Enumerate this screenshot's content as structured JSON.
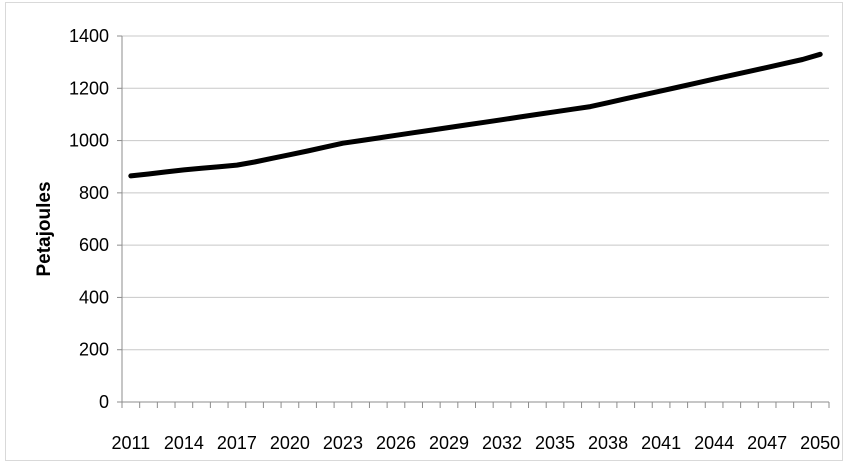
{
  "chart_data": {
    "type": "line",
    "title": "",
    "xlabel": "",
    "ylabel": "Petajoules",
    "x": [
      2011,
      2012,
      2013,
      2014,
      2015,
      2016,
      2017,
      2018,
      2019,
      2020,
      2021,
      2022,
      2023,
      2024,
      2025,
      2026,
      2027,
      2028,
      2029,
      2030,
      2031,
      2032,
      2033,
      2034,
      2035,
      2036,
      2037,
      2038,
      2039,
      2040,
      2041,
      2042,
      2043,
      2044,
      2045,
      2046,
      2047,
      2048,
      2049,
      2050
    ],
    "x_tick_labels": [
      "2011",
      "2014",
      "2017",
      "2020",
      "2023",
      "2026",
      "2029",
      "2032",
      "2035",
      "2038",
      "2041",
      "2044",
      "2047",
      "2050"
    ],
    "ylim": [
      0,
      1400
    ],
    "y_ticks": [
      0,
      200,
      400,
      600,
      800,
      1000,
      1200,
      1400
    ],
    "grid": true,
    "legend": "none",
    "series": [
      {
        "color": "#000000",
        "values": [
          865,
          872,
          880,
          888,
          894,
          900,
          906,
          918,
          932,
          946,
          960,
          975,
          990,
          1000,
          1010,
          1020,
          1030,
          1040,
          1050,
          1060,
          1070,
          1080,
          1090,
          1100,
          1110,
          1120,
          1130,
          1145,
          1160,
          1175,
          1190,
          1205,
          1220,
          1235,
          1250,
          1265,
          1280,
          1295,
          1310,
          1330
        ]
      }
    ]
  }
}
